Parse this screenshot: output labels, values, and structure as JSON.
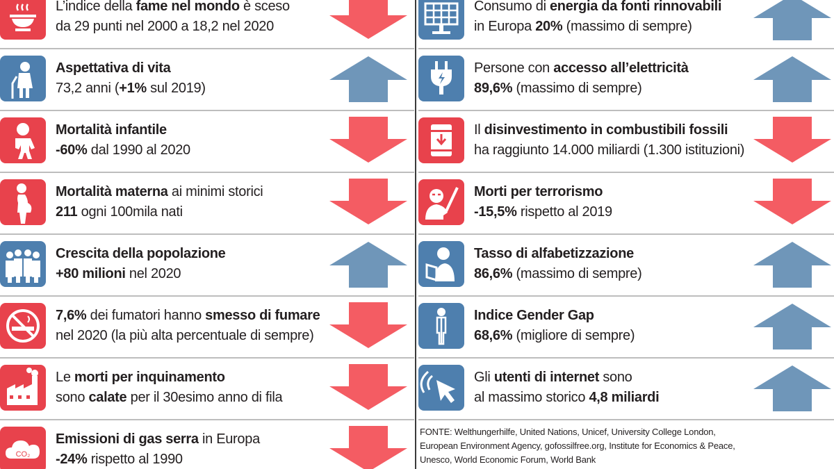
{
  "colors": {
    "down": "#f45c63",
    "up": "#6f96b9",
    "tile_red": "#e8424c",
    "tile_blue": "#4e7fae"
  },
  "left": [
    {
      "icon": "hunger-bowl-icon",
      "tile": "red",
      "trend": "down",
      "line1": [
        {
          "t": "L’indice della "
        },
        {
          "t": "fame nel mondo",
          "b": true
        },
        {
          "t": " è sceso"
        }
      ],
      "line2": [
        {
          "t": "da 29 punti nel 2000 a 18,2 nel 2020"
        }
      ]
    },
    {
      "icon": "elderly-person-icon",
      "tile": "blue",
      "trend": "up",
      "line1": [
        {
          "t": "Aspettativa di vita",
          "b": true
        }
      ],
      "line2": [
        {
          "t": "73,2 anni ("
        },
        {
          "t": "+1%",
          "b": true
        },
        {
          "t": " sul 2019)"
        }
      ]
    },
    {
      "icon": "baby-icon",
      "tile": "red",
      "trend": "down",
      "line1": [
        {
          "t": "Mortalità infantile",
          "b": true
        }
      ],
      "line2": [
        {
          "t": "-60%",
          "b": true
        },
        {
          "t": " dal 1990 al 2020"
        }
      ]
    },
    {
      "icon": "pregnant-woman-icon",
      "tile": "red",
      "trend": "down",
      "line1": [
        {
          "t": "Mortalità materna",
          "b": true
        },
        {
          "t": " ai minimi storici"
        }
      ],
      "line2": [
        {
          "t": "211",
          "b": true
        },
        {
          "t": " ogni 100mila nati"
        }
      ]
    },
    {
      "icon": "crowd-icon",
      "tile": "blue",
      "trend": "up",
      "line1": [
        {
          "t": "Crescita della popolazione",
          "b": true
        }
      ],
      "line2": [
        {
          "t": "+80 milioni",
          "b": true
        },
        {
          "t": " nel 2020"
        }
      ]
    },
    {
      "icon": "no-smoking-icon",
      "tile": "red",
      "trend": "down",
      "line1": [
        {
          "t": "7,6%",
          "b": true
        },
        {
          "t": " dei fumatori hanno "
        },
        {
          "t": "smesso di fumare",
          "b": true
        }
      ],
      "line2": [
        {
          "t": "nel 2020 (la più alta percentuale di sempre)"
        }
      ]
    },
    {
      "icon": "factory-pollution-icon",
      "tile": "red",
      "trend": "down",
      "line1": [
        {
          "t": "Le "
        },
        {
          "t": "morti per inquinamento",
          "b": true
        }
      ],
      "line2": [
        {
          "t": "sono "
        },
        {
          "t": "calate",
          "b": true
        },
        {
          "t": " per il 30esimo anno di fila"
        }
      ]
    },
    {
      "icon": "co2-cloud-icon",
      "tile": "red",
      "trend": "down",
      "co2": "CO₂",
      "line1": [
        {
          "t": "Emissioni di gas serra",
          "b": true
        },
        {
          "t": " in Europa"
        }
      ],
      "line2": [
        {
          "t": "-24%",
          "b": true
        },
        {
          "t": " rispetto al 1990"
        }
      ]
    }
  ],
  "right": [
    {
      "icon": "solar-panel-icon",
      "tile": "blue",
      "trend": "up",
      "line1": [
        {
          "t": "Consumo di "
        },
        {
          "t": "energia da fonti rinnovabili",
          "b": true
        }
      ],
      "line2": [
        {
          "t": "in Europa "
        },
        {
          "t": "20%",
          "b": true
        },
        {
          "t": " (massimo di sempre)"
        }
      ]
    },
    {
      "icon": "electric-plug-icon",
      "tile": "blue",
      "trend": "up",
      "line1": [
        {
          "t": "Persone con "
        },
        {
          "t": "accesso all’elettricità",
          "b": true
        }
      ],
      "line2": [
        {
          "t": "89,6%",
          "b": true
        },
        {
          "t": " (massimo di sempre)"
        }
      ]
    },
    {
      "icon": "oil-barrel-icon",
      "tile": "red",
      "trend": "down",
      "line1": [
        {
          "t": "Il "
        },
        {
          "t": "disinvestimento in combustibili fossili",
          "b": true
        }
      ],
      "line2": [
        {
          "t": "ha raggiunto 14.000 miliardi (1.300 istituzioni)"
        }
      ]
    },
    {
      "icon": "terrorist-icon",
      "tile": "red",
      "trend": "down",
      "line1": [
        {
          "t": "Morti per terrorismo",
          "b": true
        }
      ],
      "line2": [
        {
          "t": "-15,5%",
          "b": true
        },
        {
          "t": " rispetto al 2019"
        }
      ]
    },
    {
      "icon": "reading-person-icon",
      "tile": "blue",
      "trend": "up",
      "line1": [
        {
          "t": "Tasso di alfabetizzazione",
          "b": true
        }
      ],
      "line2": [
        {
          "t": "86,6%",
          "b": true
        },
        {
          "t": " (massimo di sempre)"
        }
      ]
    },
    {
      "icon": "gender-icon",
      "tile": "blue",
      "trend": "up",
      "line1": [
        {
          "t": "Indice Gender Gap",
          "b": true
        }
      ],
      "line2": [
        {
          "t": "68,6%",
          "b": true
        },
        {
          "t": " (migliore di sempre)"
        }
      ]
    },
    {
      "icon": "internet-cursor-icon",
      "tile": "blue",
      "trend": "up",
      "line1": [
        {
          "t": "Gli "
        },
        {
          "t": "utenti di internet",
          "b": true
        },
        {
          "t": " sono"
        }
      ],
      "line2": [
        {
          "t": "al massimo storico "
        },
        {
          "t": "4,8 miliardi",
          "b": true
        }
      ]
    }
  ],
  "source": {
    "line1": "FONTE: Welthungerhilfe, United Nations, Unicef, University College London,",
    "line2": "European Environment Agency, gofossilfree.org, Institute for Economics & Peace,",
    "line3": "Unesco, World Economic Forum, World Bank"
  }
}
